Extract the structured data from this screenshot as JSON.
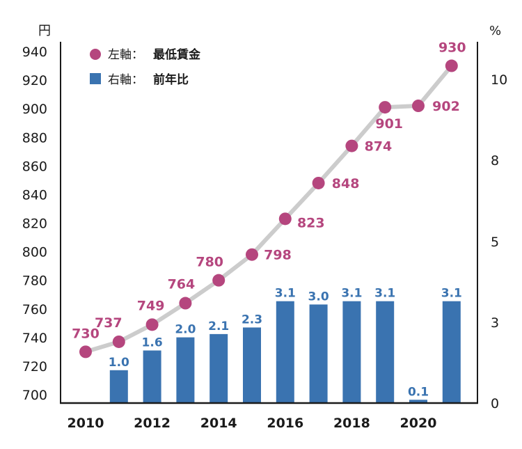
{
  "chart_data": {
    "type": "bar+line",
    "x": [
      2010,
      2011,
      2012,
      2013,
      2014,
      2015,
      2016,
      2017,
      2018,
      2019,
      2020,
      2021
    ],
    "x_tick_labels": [
      "2010",
      "2012",
      "2014",
      "2016",
      "2018",
      "2020"
    ],
    "left_axis": {
      "unit_label": "円",
      "ylim": [
        700,
        940
      ],
      "ticks": [
        "700",
        "720",
        "740",
        "760",
        "780",
        "800",
        "820",
        "840",
        "860",
        "880",
        "900",
        "920",
        "940"
      ]
    },
    "right_axis": {
      "unit_label": "%",
      "ticks": [
        "0",
        "3",
        "5",
        "8",
        "10"
      ]
    },
    "series": [
      {
        "name": "最低賃金",
        "legend_prefix": "左軸：",
        "type": "line",
        "axis": "left",
        "color": "#b5467e",
        "line_color": "#cccccc",
        "values": [
          730,
          737,
          749,
          764,
          780,
          798,
          823,
          848,
          874,
          901,
          902,
          930
        ],
        "labels": [
          "730",
          "737",
          "749",
          "764",
          "780",
          "798",
          "823",
          "848",
          "874",
          "901",
          "902",
          "930"
        ]
      },
      {
        "name": "前年比",
        "legend_prefix": "右軸：",
        "type": "bar",
        "axis": "right",
        "color": "#3a73b0",
        "values": [
          null,
          1.0,
          1.6,
          2.0,
          2.1,
          2.3,
          3.1,
          3.0,
          3.1,
          3.1,
          0.1,
          3.1
        ],
        "labels": [
          "",
          "1.0",
          "1.6",
          "2.0",
          "2.1",
          "2.3",
          "3.1",
          "3.0",
          "3.1",
          "3.1",
          "0.1",
          "3.1"
        ]
      }
    ],
    "legend": "top-left",
    "grid": false
  }
}
